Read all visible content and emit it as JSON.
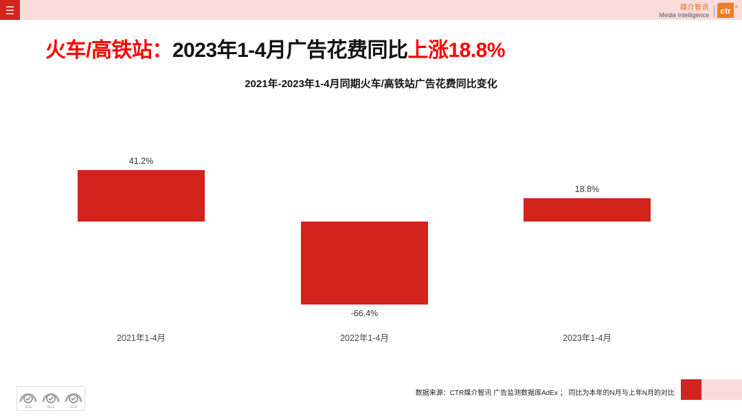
{
  "header": {
    "menu_icon": "hamburger-menu-icon",
    "brand_cn": "媒介智讯",
    "brand_en": "Media Intelligence",
    "logo_text": "ctr",
    "logo_reg": "®"
  },
  "headline": {
    "part1": "火车/高铁站：",
    "part2": "2023年1-4月广告花费同比",
    "part3": "上涨18.8%"
  },
  "colors": {
    "accent_red": "#d3231d",
    "headline_red": "#ff0000",
    "top_bar_pink": "#fadcdc",
    "ctr_orange": "#ee7d23"
  },
  "chart_data": {
    "type": "bar",
    "title": "2021年-2023年1-4月同期火车/高铁站广告花费同比变化",
    "categories": [
      "2021年1-4月",
      "2022年1-4月",
      "2023年1-4月"
    ],
    "values": [
      41.2,
      -66.4,
      18.8
    ],
    "value_labels": [
      "41.2%",
      "-66.4%",
      "18.8%"
    ],
    "unit": "%",
    "xlabel": "",
    "ylabel": "",
    "grid": false,
    "legend": null,
    "bar_color": "#d3231d"
  },
  "footer": {
    "source": "数据来源：CTR媒介智讯 广告监测数据库AdEx ； 同比为本年的N月与上年N月的对比",
    "certification_badges": [
      "SGS",
      "SGS",
      "SGS"
    ]
  }
}
